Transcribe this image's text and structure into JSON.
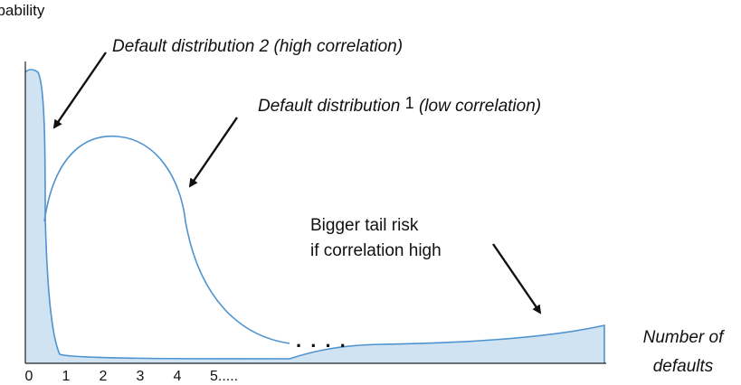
{
  "chart_data": {
    "type": "area",
    "title": "",
    "ylabel": "Probability",
    "xlabel_lines": [
      "Number of",
      "defaults"
    ],
    "x_tick_labels": [
      "0",
      "1",
      "2",
      "3",
      "4",
      "5....."
    ],
    "series": [
      {
        "label": "Default distribution 2 (high correlation)",
        "fill": "#cfe3f3",
        "stroke": "#4f93cf"
      },
      {
        "label_main": "Default distribution ",
        "label_num": "1",
        "label_rest": " (low correlation)",
        "fill": "none",
        "stroke": "#4f93cf"
      }
    ],
    "annotations": {
      "tail_line1": "Bigger tail risk",
      "tail_line2": "if correlation high",
      "ellipsis": ". . . ."
    }
  }
}
